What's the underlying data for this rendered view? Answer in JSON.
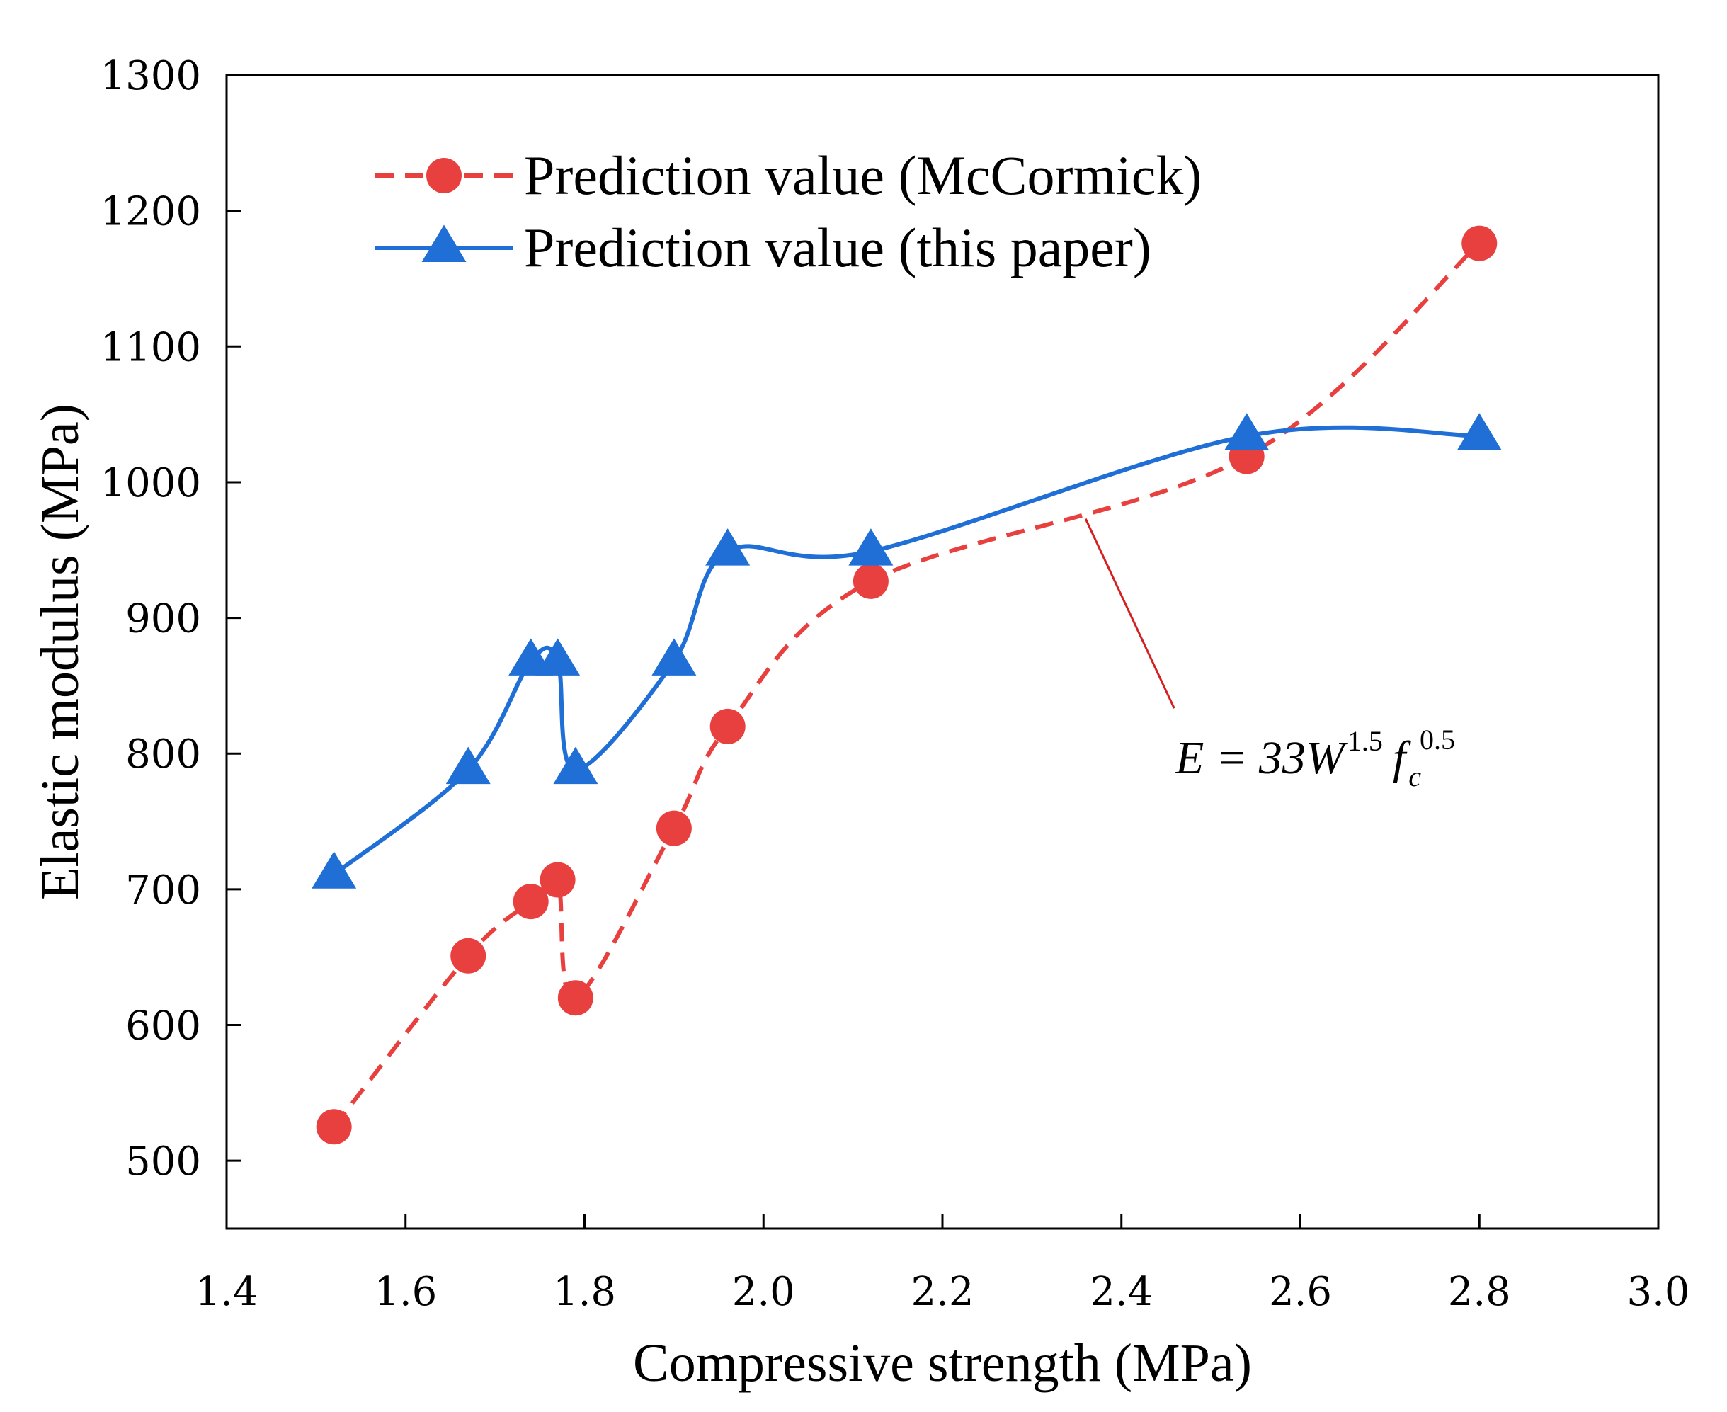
{
  "chart_data": {
    "type": "line",
    "title": "",
    "xlabel": "Compressive strength (MPa)",
    "ylabel": "Elastic modulus (MPa)",
    "xlim": [
      1.4,
      3.0
    ],
    "ylim": [
      450,
      1300
    ],
    "xticks": [
      1.4,
      1.6,
      1.8,
      2.0,
      2.2,
      2.4,
      2.6,
      2.8,
      3.0
    ],
    "xtick_labels": [
      "1.4",
      "1.6",
      "1.8",
      "2.0",
      "2.2",
      "2.4",
      "2.6",
      "2.8",
      "3.0"
    ],
    "yticks": [
      500,
      600,
      700,
      800,
      900,
      1000,
      1100,
      1200,
      1300
    ],
    "ytick_labels": [
      "500",
      "600",
      "700",
      "800",
      "900",
      "1000",
      "1100",
      "1200",
      "1300"
    ],
    "grid": false,
    "legend_position": "top-left",
    "series": [
      {
        "name": "Prediction value (McCormick)",
        "color": "#e8403f",
        "marker": "circle",
        "line_style": "dashed",
        "x": [
          1.52,
          1.67,
          1.74,
          1.77,
          1.79,
          1.9,
          1.96,
          2.12,
          2.54,
          2.8
        ],
        "y": [
          525,
          651,
          691,
          707,
          620,
          745,
          820,
          927,
          1019,
          1176
        ]
      },
      {
        "name": "Prediction value (this paper)",
        "color": "#1f6fd6",
        "marker": "triangle",
        "line_style": "solid",
        "x": [
          1.52,
          1.67,
          1.74,
          1.77,
          1.79,
          1.9,
          1.96,
          2.12,
          2.54,
          2.8
        ],
        "y": [
          711,
          788,
          868,
          868,
          788,
          868,
          949,
          949,
          1034,
          1034
        ]
      }
    ],
    "annotation": {
      "pointer_x": 2.36,
      "pointer_y": 973,
      "label_x": 2.44,
      "label_y": 800,
      "base": "E = 33W",
      "exp1": "1.5",
      "var": "f",
      "sub": "c",
      "exp2": "0.5"
    }
  }
}
